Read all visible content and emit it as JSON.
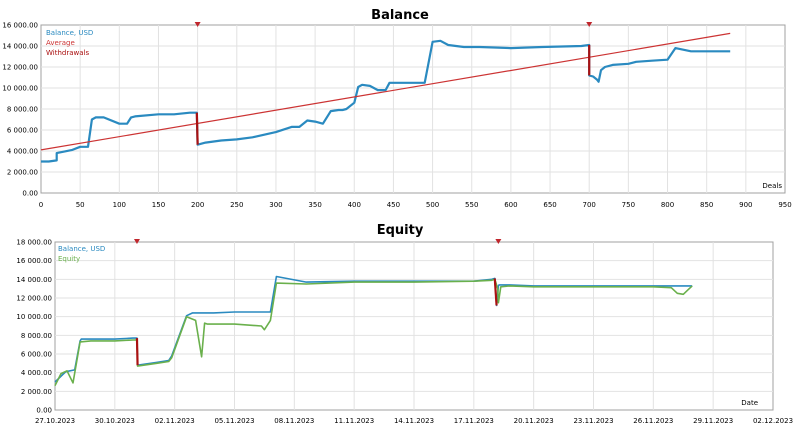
{
  "chart_data": [
    {
      "type": "line",
      "title": "Balance",
      "xlabel": "Deals",
      "ylabel": "",
      "xlim": [
        0,
        950
      ],
      "ylim": [
        0,
        16000
      ],
      "grid": true,
      "legend_position": "top-left",
      "x_ticks": [
        "0",
        "50",
        "100",
        "150",
        "200",
        "250",
        "300",
        "350",
        "400",
        "450",
        "500",
        "550",
        "600",
        "650",
        "700",
        "750",
        "800",
        "850",
        "900",
        "950"
      ],
      "y_ticks": [
        "0.00",
        "2 000.00",
        "4 000.00",
        "6 000.00",
        "8 000.00",
        "10 000.00",
        "12 000.00",
        "14 000.00",
        "16 000.00"
      ],
      "legend": [
        {
          "name": "Balance, USD",
          "color": "#2a8ac0"
        },
        {
          "name": "Average",
          "color": "#cc3333"
        },
        {
          "name": "Withdrawals",
          "color": "#aa1111"
        }
      ],
      "withdrawal_markers_x": [
        200,
        700
      ],
      "series": [
        {
          "name": "Balance, USD",
          "color": "#2a8ac0",
          "x": [
            0,
            10,
            20,
            20,
            40,
            50,
            60,
            65,
            70,
            80,
            100,
            110,
            115,
            120,
            150,
            170,
            190,
            199,
            200,
            210,
            230,
            250,
            270,
            300,
            320,
            330,
            340,
            350,
            360,
            370,
            380,
            385,
            390,
            400,
            405,
            410,
            420,
            430,
            440,
            445,
            450,
            490,
            500,
            510,
            520,
            540,
            560,
            600,
            640,
            690,
            700,
            700,
            705,
            710,
            712,
            715,
            720,
            730,
            750,
            760,
            780,
            800,
            810,
            830,
            870,
            880
          ],
          "y": [
            3000,
            3000,
            3100,
            3800,
            4100,
            4400,
            4400,
            7000,
            7200,
            7200,
            6600,
            6600,
            7200,
            7300,
            7500,
            7500,
            7650,
            7650,
            4600,
            4800,
            5000,
            5100,
            5300,
            5800,
            6300,
            6300,
            6900,
            6800,
            6600,
            7800,
            7900,
            7900,
            8000,
            8600,
            10100,
            10300,
            10200,
            9800,
            9800,
            10500,
            10500,
            10500,
            14400,
            14500,
            14100,
            13900,
            13900,
            13800,
            13900,
            14000,
            14100,
            11200,
            11100,
            10800,
            10600,
            11700,
            12000,
            12200,
            12300,
            12500,
            12600,
            12700,
            13800,
            13500,
            13500,
            13500
          ]
        },
        {
          "name": "Average",
          "color": "#cc3333",
          "x": [
            0,
            880
          ],
          "y": [
            4100,
            15200
          ]
        }
      ]
    },
    {
      "type": "line",
      "title": "Equity",
      "xlabel": "Date",
      "ylabel": "",
      "ylim": [
        0,
        18000
      ],
      "grid": true,
      "legend_position": "top-left",
      "x_ticks": [
        "27.10.2023",
        "30.10.2023",
        "02.11.2023",
        "05.11.2023",
        "08.11.2023",
        "11.11.2023",
        "14.11.2023",
        "17.11.2023",
        "20.11.2023",
        "23.11.2023",
        "26.11.2023",
        "29.11.2023",
        "02.12.2023"
      ],
      "y_ticks": [
        "0.00",
        "2 000.00",
        "4 000.00",
        "6 000.00",
        "8 000.00",
        "10 000.00",
        "12 000.00",
        "14 000.00",
        "16 000.00",
        "18 000.00"
      ],
      "legend": [
        {
          "name": "Balance, USD",
          "color": "#2a8ac0"
        },
        {
          "name": "Equity",
          "color": "#6ab04c"
        }
      ],
      "withdrawal_markers_x": [
        1.37,
        7.41
      ],
      "series": [
        {
          "name": "Balance, USD",
          "color": "#2a8ac0",
          "x": [
            0,
            0.18,
            0.33,
            0.42,
            0.44,
            0.6,
            1,
            1.3,
            1.37,
            1.38,
            1.7,
            1.9,
            1.95,
            2.2,
            2.3,
            2.65,
            3,
            3.6,
            3.7,
            4.2,
            5,
            6,
            7,
            7.3,
            7.35,
            7.38,
            7.41,
            7.42,
            7.6,
            8,
            9,
            10,
            10.5,
            10.65
          ],
          "y": [
            3000,
            4100,
            4300,
            7400,
            7600,
            7600,
            7600,
            7700,
            7700,
            4800,
            5100,
            5300,
            5800,
            10100,
            10400,
            10400,
            10500,
            10500,
            14300,
            13700,
            13800,
            13800,
            13800,
            14000,
            14100,
            11200,
            13300,
            13400,
            13400,
            13300,
            13300,
            13300,
            13300,
            13300
          ]
        },
        {
          "name": "Equity",
          "color": "#6ab04c",
          "x": [
            0,
            0.1,
            0.2,
            0.3,
            0.42,
            0.6,
            1,
            1.3,
            1.37,
            1.38,
            1.7,
            1.9,
            1.95,
            2.2,
            2.35,
            2.45,
            2.5,
            2.55,
            2.65,
            3,
            3.45,
            3.5,
            3.6,
            3.7,
            4.2,
            5,
            6,
            7,
            7.3,
            7.35,
            7.4,
            7.41,
            7.45,
            7.6,
            8,
            9,
            10,
            10.3,
            10.4,
            10.5,
            10.6,
            10.65
          ],
          "y": [
            2600,
            3900,
            4200,
            2900,
            7300,
            7400,
            7400,
            7500,
            7500,
            4700,
            5000,
            5200,
            5600,
            10000,
            9600,
            5700,
            9300,
            9200,
            9200,
            9200,
            9000,
            8600,
            9600,
            13600,
            13500,
            13700,
            13700,
            13800,
            13900,
            14000,
            13000,
            11500,
            13200,
            13300,
            13200,
            13200,
            13200,
            13100,
            12500,
            12400,
            13000,
            13300
          ]
        }
      ]
    }
  ]
}
